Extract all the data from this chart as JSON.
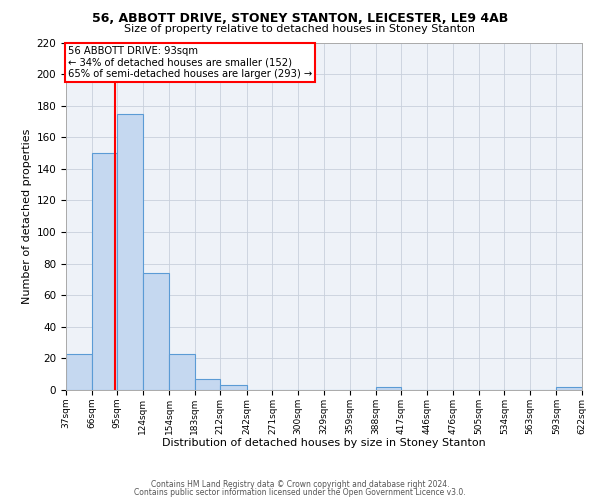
{
  "title": "56, ABBOTT DRIVE, STONEY STANTON, LEICESTER, LE9 4AB",
  "subtitle": "Size of property relative to detached houses in Stoney Stanton",
  "xlabel": "Distribution of detached houses by size in Stoney Stanton",
  "ylabel": "Number of detached properties",
  "bins": [
    37,
    66,
    95,
    124,
    154,
    183,
    212,
    242,
    271,
    300,
    329,
    359,
    388,
    417,
    446,
    476,
    505,
    534,
    563,
    593,
    622
  ],
  "counts": [
    23,
    150,
    175,
    74,
    23,
    7,
    3,
    0,
    0,
    0,
    0,
    0,
    2,
    0,
    0,
    0,
    0,
    0,
    0,
    2
  ],
  "bar_color": "#c5d8f0",
  "bar_edge_color": "#5b9bd5",
  "grid_color": "#c8d0dc",
  "bg_color": "#eef2f8",
  "red_line_x": 93,
  "annotation_line1": "56 ABBOTT DRIVE: 93sqm",
  "annotation_line2": "← 34% of detached houses are smaller (152)",
  "annotation_line3": "65% of semi-detached houses are larger (293) →",
  "ylim": [
    0,
    220
  ],
  "yticks": [
    0,
    20,
    40,
    60,
    80,
    100,
    120,
    140,
    160,
    180,
    200,
    220
  ],
  "footer_line1": "Contains HM Land Registry data © Crown copyright and database right 2024.",
  "footer_line2": "Contains public sector information licensed under the Open Government Licence v3.0.",
  "tick_labels": [
    "37sqm",
    "66sqm",
    "95sqm",
    "124sqm",
    "154sqm",
    "183sqm",
    "212sqm",
    "242sqm",
    "271sqm",
    "300sqm",
    "329sqm",
    "359sqm",
    "388sqm",
    "417sqm",
    "446sqm",
    "476sqm",
    "505sqm",
    "534sqm",
    "563sqm",
    "593sqm",
    "622sqm"
  ]
}
